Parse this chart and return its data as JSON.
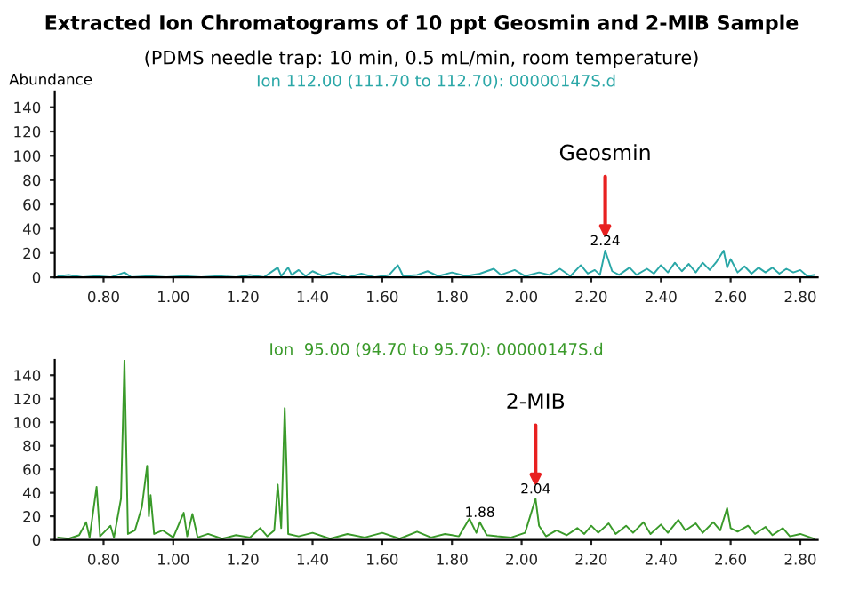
{
  "chart_data": [
    {
      "type": "line",
      "title": "Ion 112.00 (111.70 to 112.70): 00000147S.d",
      "ylabel": "Abundance",
      "xlim": [
        0.66,
        2.85
      ],
      "ylim": [
        0,
        153
      ],
      "xticks": [
        {
          "value": 0.8,
          "label": "0.80"
        },
        {
          "value": 1.0,
          "label": "1.00"
        },
        {
          "value": 1.2,
          "label": "1.20"
        },
        {
          "value": 1.4,
          "label": "1.40"
        },
        {
          "value": 1.6,
          "label": "1.60"
        },
        {
          "value": 1.8,
          "label": "1.80"
        },
        {
          "value": 2.0,
          "label": "2.00"
        },
        {
          "value": 2.2,
          "label": "2.20"
        },
        {
          "value": 2.4,
          "label": "2.40"
        },
        {
          "value": 2.6,
          "label": "2.60"
        },
        {
          "value": 2.8,
          "label": "2.80"
        }
      ],
      "yticks": [
        0,
        20,
        40,
        60,
        80,
        100,
        120,
        140
      ],
      "grid": false,
      "legend": false,
      "marker": "none",
      "annotations": [
        "Extracted Ion Chromatograms of 10 ppt Geosmin and 2-MIB Sample",
        "(PDMS needle trap: 10 min, 0.5 mL/min, room temperature)",
        "Geosmin",
        {
          "text": "2.24",
          "x": 2.24,
          "y": 22
        }
      ],
      "series": [
        {
          "color": "#2aa7a7",
          "x": [
            0.67,
            0.7,
            0.74,
            0.78,
            0.82,
            0.86,
            0.88,
            0.93,
            0.98,
            1.03,
            1.08,
            1.13,
            1.18,
            1.22,
            1.26,
            1.3,
            1.31,
            1.33,
            1.34,
            1.36,
            1.38,
            1.4,
            1.43,
            1.46,
            1.5,
            1.54,
            1.58,
            1.62,
            1.645,
            1.66,
            1.7,
            1.73,
            1.76,
            1.8,
            1.84,
            1.88,
            1.92,
            1.94,
            1.98,
            2.01,
            2.05,
            2.08,
            2.11,
            2.14,
            2.17,
            2.19,
            2.21,
            2.225,
            2.24,
            2.26,
            2.28,
            2.31,
            2.33,
            2.36,
            2.38,
            2.4,
            2.42,
            2.44,
            2.46,
            2.48,
            2.5,
            2.52,
            2.54,
            2.56,
            2.58,
            2.59,
            2.6,
            2.62,
            2.64,
            2.66,
            2.68,
            2.7,
            2.72,
            2.74,
            2.76,
            2.78,
            2.8,
            2.82,
            2.84
          ],
          "values": [
            1,
            2,
            0,
            1,
            0,
            4,
            0,
            1,
            0,
            1,
            0,
            1,
            0,
            2,
            0,
            8,
            1,
            8,
            2,
            6,
            1,
            5,
            1,
            4,
            0,
            3,
            0,
            2,
            10,
            1,
            2,
            5,
            1,
            4,
            1,
            3,
            7,
            2,
            6,
            1,
            4,
            2,
            7,
            1,
            10,
            3,
            6,
            2,
            22,
            5,
            2,
            8,
            2,
            7,
            3,
            10,
            4,
            12,
            5,
            11,
            4,
            12,
            6,
            13,
            22,
            8,
            15,
            4,
            9,
            3,
            8,
            4,
            8,
            3,
            7,
            4,
            6,
            1,
            2
          ]
        }
      ]
    },
    {
      "type": "line",
      "title": "Ion  95.00 (94.70 to 95.70): 00000147S.d",
      "xlim": [
        0.66,
        2.85
      ],
      "ylim": [
        0,
        153
      ],
      "xticks": [
        {
          "value": 0.8,
          "label": "0.80"
        },
        {
          "value": 1.0,
          "label": "1.00"
        },
        {
          "value": 1.2,
          "label": "1.20"
        },
        {
          "value": 1.4,
          "label": "1.40"
        },
        {
          "value": 1.6,
          "label": "1.60"
        },
        {
          "value": 1.8,
          "label": "1.80"
        },
        {
          "value": 2.0,
          "label": "2.00"
        },
        {
          "value": 2.2,
          "label": "2.20"
        },
        {
          "value": 2.4,
          "label": "2.40"
        },
        {
          "value": 2.6,
          "label": "2.60"
        },
        {
          "value": 2.8,
          "label": "2.80"
        }
      ],
      "yticks": [
        0,
        20,
        40,
        60,
        80,
        100,
        120,
        140
      ],
      "grid": false,
      "legend": false,
      "marker": "none",
      "annotations": [
        "2-MIB",
        {
          "text": "2.04",
          "x": 2.04,
          "y": 35
        },
        {
          "text": "1.88",
          "x": 1.88,
          "y": 15
        }
      ],
      "series": [
        {
          "color": "#3a9a2a",
          "x": [
            0.67,
            0.7,
            0.73,
            0.75,
            0.76,
            0.78,
            0.79,
            0.82,
            0.83,
            0.85,
            0.86,
            0.87,
            0.89,
            0.91,
            0.925,
            0.93,
            0.935,
            0.945,
            0.97,
            1.0,
            1.03,
            1.04,
            1.055,
            1.07,
            1.1,
            1.14,
            1.18,
            1.22,
            1.25,
            1.27,
            1.29,
            1.3,
            1.31,
            1.32,
            1.325,
            1.33,
            1.36,
            1.4,
            1.45,
            1.5,
            1.55,
            1.6,
            1.65,
            1.7,
            1.74,
            1.78,
            1.82,
            1.85,
            1.87,
            1.88,
            1.9,
            1.93,
            1.97,
            2.01,
            2.04,
            2.05,
            2.07,
            2.1,
            2.13,
            2.16,
            2.18,
            2.2,
            2.22,
            2.25,
            2.27,
            2.3,
            2.32,
            2.35,
            2.37,
            2.4,
            2.42,
            2.45,
            2.47,
            2.5,
            2.52,
            2.55,
            2.57,
            2.59,
            2.6,
            2.62,
            2.65,
            2.67,
            2.7,
            2.72,
            2.75,
            2.77,
            2.8,
            2.84
          ],
          "values": [
            2,
            1,
            4,
            15,
            2,
            45,
            3,
            12,
            2,
            35,
            153,
            5,
            8,
            28,
            63,
            20,
            38,
            5,
            8,
            2,
            23,
            3,
            22,
            2,
            5,
            1,
            4,
            2,
            10,
            3,
            8,
            47,
            10,
            112,
            65,
            5,
            3,
            6,
            1,
            5,
            2,
            6,
            1,
            7,
            2,
            5,
            3,
            18,
            6,
            15,
            4,
            3,
            2,
            6,
            35,
            12,
            3,
            8,
            4,
            10,
            5,
            12,
            6,
            14,
            5,
            12,
            6,
            15,
            5,
            13,
            6,
            17,
            8,
            14,
            6,
            15,
            8,
            27,
            10,
            7,
            12,
            5,
            11,
            4,
            10,
            3,
            5,
            1
          ]
        }
      ]
    }
  ]
}
